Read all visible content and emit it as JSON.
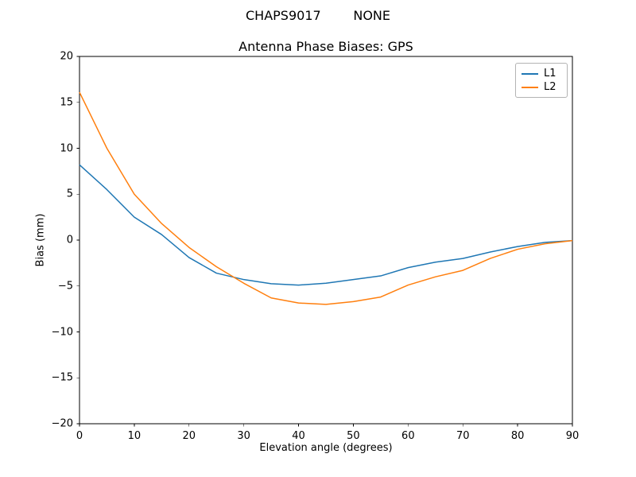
{
  "header": {
    "suptitle": "CHAPS9017        NONE"
  },
  "chart_data": {
    "type": "line",
    "title": "Antenna Phase Biases: GPS",
    "xlabel": "Elevation angle (degrees)",
    "ylabel": "Bias (mm)",
    "xlim": [
      0,
      90
    ],
    "ylim": [
      -20,
      20
    ],
    "xticks": [
      0,
      10,
      20,
      30,
      40,
      50,
      60,
      70,
      80,
      90
    ],
    "yticks": [
      20,
      15,
      10,
      5,
      0,
      -5,
      -10,
      -15,
      -20
    ],
    "grid": false,
    "legend_position": "upper right",
    "x": [
      0,
      5,
      10,
      15,
      20,
      25,
      30,
      35,
      40,
      45,
      50,
      55,
      60,
      65,
      70,
      75,
      80,
      85,
      90
    ],
    "series": [
      {
        "name": "L1",
        "color": "#1f77b4",
        "values": [
          8.2,
          5.5,
          2.5,
          0.6,
          -1.9,
          -3.6,
          -4.3,
          -4.75,
          -4.9,
          -4.7,
          -4.3,
          -3.9,
          -3.0,
          -2.4,
          -2.0,
          -1.3,
          -0.7,
          -0.25,
          -0.05
        ]
      },
      {
        "name": "L2",
        "color": "#ff7f0e",
        "values": [
          16.1,
          10.0,
          5.0,
          1.8,
          -0.8,
          -2.9,
          -4.7,
          -6.3,
          -6.85,
          -7.0,
          -6.7,
          -6.2,
          -4.9,
          -4.0,
          -3.3,
          -2.0,
          -1.0,
          -0.4,
          -0.05
        ]
      }
    ],
    "axis_color": "#000000",
    "background_color": "#ffffff"
  }
}
